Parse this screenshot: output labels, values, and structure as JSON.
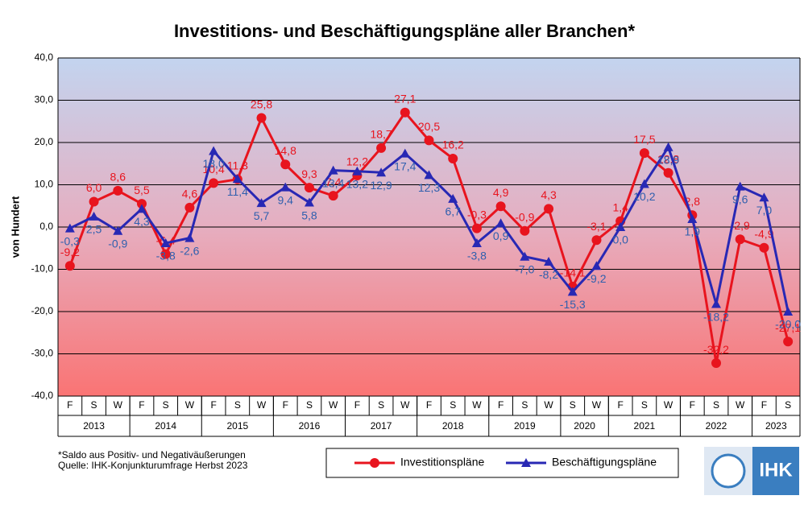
{
  "chart_data": {
    "type": "line",
    "title": "Investitions- und Beschäftigungspläne aller Branchen*",
    "y_label": "von Hundert",
    "categories": [
      {
        "label": "F",
        "group": "2013"
      },
      {
        "label": "S",
        "group": "2013"
      },
      {
        "label": "W",
        "group": "2013"
      },
      {
        "label": "F",
        "group": "2014"
      },
      {
        "label": "S",
        "group": "2014"
      },
      {
        "label": "W",
        "group": "2014"
      },
      {
        "label": "F",
        "group": "2015"
      },
      {
        "label": "S",
        "group": "2015"
      },
      {
        "label": "W",
        "group": "2015"
      },
      {
        "label": "F",
        "group": "2016"
      },
      {
        "label": "S",
        "group": "2016"
      },
      {
        "label": "W",
        "group": "2016"
      },
      {
        "label": "F",
        "group": "2017"
      },
      {
        "label": "S",
        "group": "2017"
      },
      {
        "label": "W",
        "group": "2017"
      },
      {
        "label": "F",
        "group": "2018"
      },
      {
        "label": "S",
        "group": "2018"
      },
      {
        "label": "W",
        "group": "2018"
      },
      {
        "label": "F",
        "group": "2019"
      },
      {
        "label": "S",
        "group": "2019"
      },
      {
        "label": "W",
        "group": "2019"
      },
      {
        "label": "S",
        "group": "2020"
      },
      {
        "label": "W",
        "group": "2020"
      },
      {
        "label": "F",
        "group": "2021"
      },
      {
        "label": "S",
        "group": "2021"
      },
      {
        "label": "W",
        "group": "2021"
      },
      {
        "label": "F",
        "group": "2022"
      },
      {
        "label": "S",
        "group": "2022"
      },
      {
        "label": "W",
        "group": "2022"
      },
      {
        "label": "F",
        "group": "2023"
      },
      {
        "label": "S",
        "group": "2023"
      }
    ],
    "series": [
      {
        "name": "Investitionspläne",
        "color": "#e8141e",
        "marker": "circle",
        "values": [
          -9.2,
          6.0,
          8.6,
          5.5,
          -6.4,
          4.6,
          10.4,
          11.3,
          25.8,
          14.8,
          9.3,
          7.4,
          12.2,
          18.7,
          27.1,
          20.5,
          16.2,
          -0.3,
          4.9,
          -0.9,
          4.3,
          -14.1,
          -3.1,
          1.4,
          17.5,
          12.8,
          2.8,
          -32.2,
          -2.9,
          -4.9,
          -27.1
        ],
        "value_labels": [
          "-9,2",
          "6,0",
          "8,6",
          "5,5",
          "-6,4",
          "4,6",
          "10,4",
          "11,3",
          "25,8",
          "14,8",
          "9,3",
          "7,4",
          "12,2",
          "18,7",
          "27,1",
          "20,5",
          "16,2",
          "-0,3",
          "4,9",
          "-0,9",
          "4,3",
          "-14,1",
          "-3,1",
          "1,4",
          "17,5",
          "12,8",
          "2,8",
          "-32,2",
          "-2,9",
          "-4,9",
          "-27,1"
        ]
      },
      {
        "name": "Beschäftigungspläne",
        "color": "#2828b4",
        "marker": "triangle",
        "values": [
          -0.3,
          2.5,
          -0.9,
          4.3,
          -3.8,
          -2.6,
          18.0,
          11.4,
          5.7,
          9.4,
          5.8,
          13.4,
          13.2,
          12.9,
          17.4,
          12.3,
          6.7,
          -3.8,
          0.9,
          -7.0,
          -8.2,
          -15.3,
          -9.2,
          0.0,
          10.2,
          18.9,
          1.9,
          -18.2,
          9.6,
          7.0,
          -20.0
        ],
        "value_labels": [
          "-0,3",
          "2,5",
          "-0,9",
          "4,3",
          "-3,8",
          "-2,6",
          "18,0",
          "11,4",
          "5,7",
          "9,4",
          "5,8",
          "13,4",
          "13,2",
          "12,9",
          "17,4",
          "12,3",
          "6,7",
          "-3,8",
          "0,9",
          "-7,0",
          "-8,2",
          "-15,3",
          "-9,2",
          "0,0",
          "10,2",
          "18,9",
          "1,9",
          "-18,2",
          "9,6",
          "7,0",
          "-20,0"
        ]
      }
    ],
    "ylim": [
      -40,
      40
    ],
    "yticks": [
      {
        "value": -40,
        "label": "-40,0"
      },
      {
        "value": -30,
        "label": "-30,0"
      },
      {
        "value": -20,
        "label": "-20,0"
      },
      {
        "value": -10,
        "label": "-10,0"
      },
      {
        "value": 0,
        "label": "0,0"
      },
      {
        "value": 10,
        "label": "10,0"
      },
      {
        "value": 20,
        "label": "20,0"
      },
      {
        "value": 30,
        "label": "30,0"
      },
      {
        "value": 40,
        "label": "40,0"
      }
    ],
    "grid": true,
    "footnotes": [
      "*Saldo aus Positiv- und Negativäußerungen",
      "Quelle: IHK-Konjunkturumfrage Herbst 2023"
    ],
    "logo": "IHK"
  }
}
